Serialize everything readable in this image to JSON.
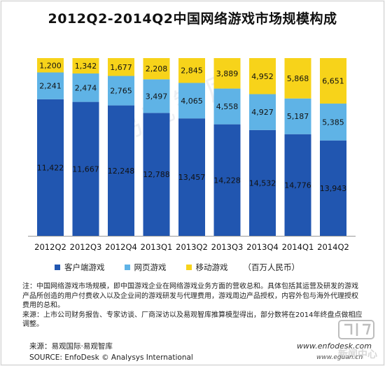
{
  "chart_data": {
    "type": "bar",
    "stacked": true,
    "title": "2012Q2-2014Q2中国网络游戏市场规模构成",
    "categories": [
      "2012Q2",
      "2012Q3",
      "2012Q4",
      "2013Q1",
      "2013Q2",
      "2013Q3",
      "2013Q4",
      "2014Q1",
      "2014Q2"
    ],
    "series": [
      {
        "name": "客户端游戏",
        "color": "#2156b0",
        "values": [
          11422,
          11667,
          12248,
          12788,
          13457,
          14228,
          14532,
          14776,
          13943
        ]
      },
      {
        "name": "网页游戏",
        "color": "#5fb3e6",
        "values": [
          2241,
          2474,
          2765,
          3497,
          4065,
          4558,
          4927,
          5187,
          5385
        ]
      },
      {
        "name": "移动游戏",
        "color": "#f7d31a",
        "values": [
          1200,
          1342,
          1677,
          2208,
          2845,
          3889,
          4952,
          5868,
          6651
        ]
      }
    ],
    "value_labels": {
      "客户端游戏": [
        "11,422",
        "11,667",
        "12,248",
        "12,788",
        "13,457",
        "14,228",
        "14,532",
        "14,776",
        "13,943"
      ],
      "网页游戏": [
        "2,241",
        "2,474",
        "2,765",
        "3,497",
        "4,065",
        "4,558",
        "4,927",
        "5,187",
        "5,385"
      ],
      "移动游戏": [
        "1,200",
        "1,342",
        "1,677",
        "2,208",
        "2,845",
        "3,889",
        "4,952",
        "5,868",
        "6,651"
      ]
    },
    "normalized_to_100_percent": true,
    "unit": "（百万人民币）",
    "legend_position": "bottom",
    "grid": false
  },
  "note": {
    "line1": "注：中国网络游戏市场规模，即中国游戏企业在网络游戏业务方面的营收总和。具体包括其运营及研发的游戏产品所创造的用户付费收入以及企业间的游戏研发与代理费用，游戏周边产品授权，内容外包与海外代理授权费用的总和。",
    "line2": "来源：上市公司财务报告、专家访谈、厂商深访以及易观智库推算模型得出，部分数将在2014年终盘点做相应调整。"
  },
  "source": {
    "cn": "来源：易观国际·易观智库",
    "en": "SOURCE: EnfoDesk © Analysys International"
  },
  "watermarks": {
    "diagonal": "易观智库",
    "site1": "www.enfodesk.com",
    "site2": "www.eguan.cn",
    "news": "新闻中心"
  }
}
